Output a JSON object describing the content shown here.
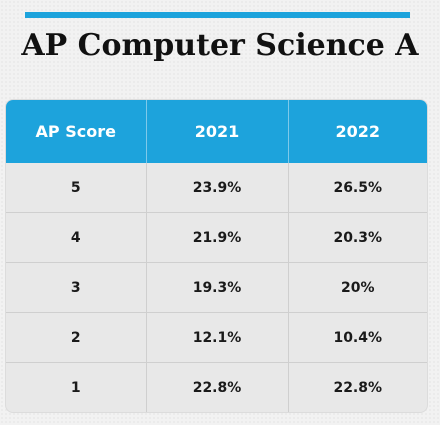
{
  "title": "AP Computer Science A",
  "accent_color": "#1da3dc",
  "chart_data": {
    "type": "table",
    "title": "AP Computer Science A",
    "columns": [
      "AP Score",
      "2021",
      "2022"
    ],
    "rows": [
      [
        "5",
        "23.9%",
        "26.5%"
      ],
      [
        "4",
        "21.9%",
        "20.3%"
      ],
      [
        "3",
        "19.3%",
        "20%"
      ],
      [
        "2",
        "12.1%",
        "10.4%"
      ],
      [
        "1",
        "22.8%",
        "22.8%"
      ]
    ]
  }
}
